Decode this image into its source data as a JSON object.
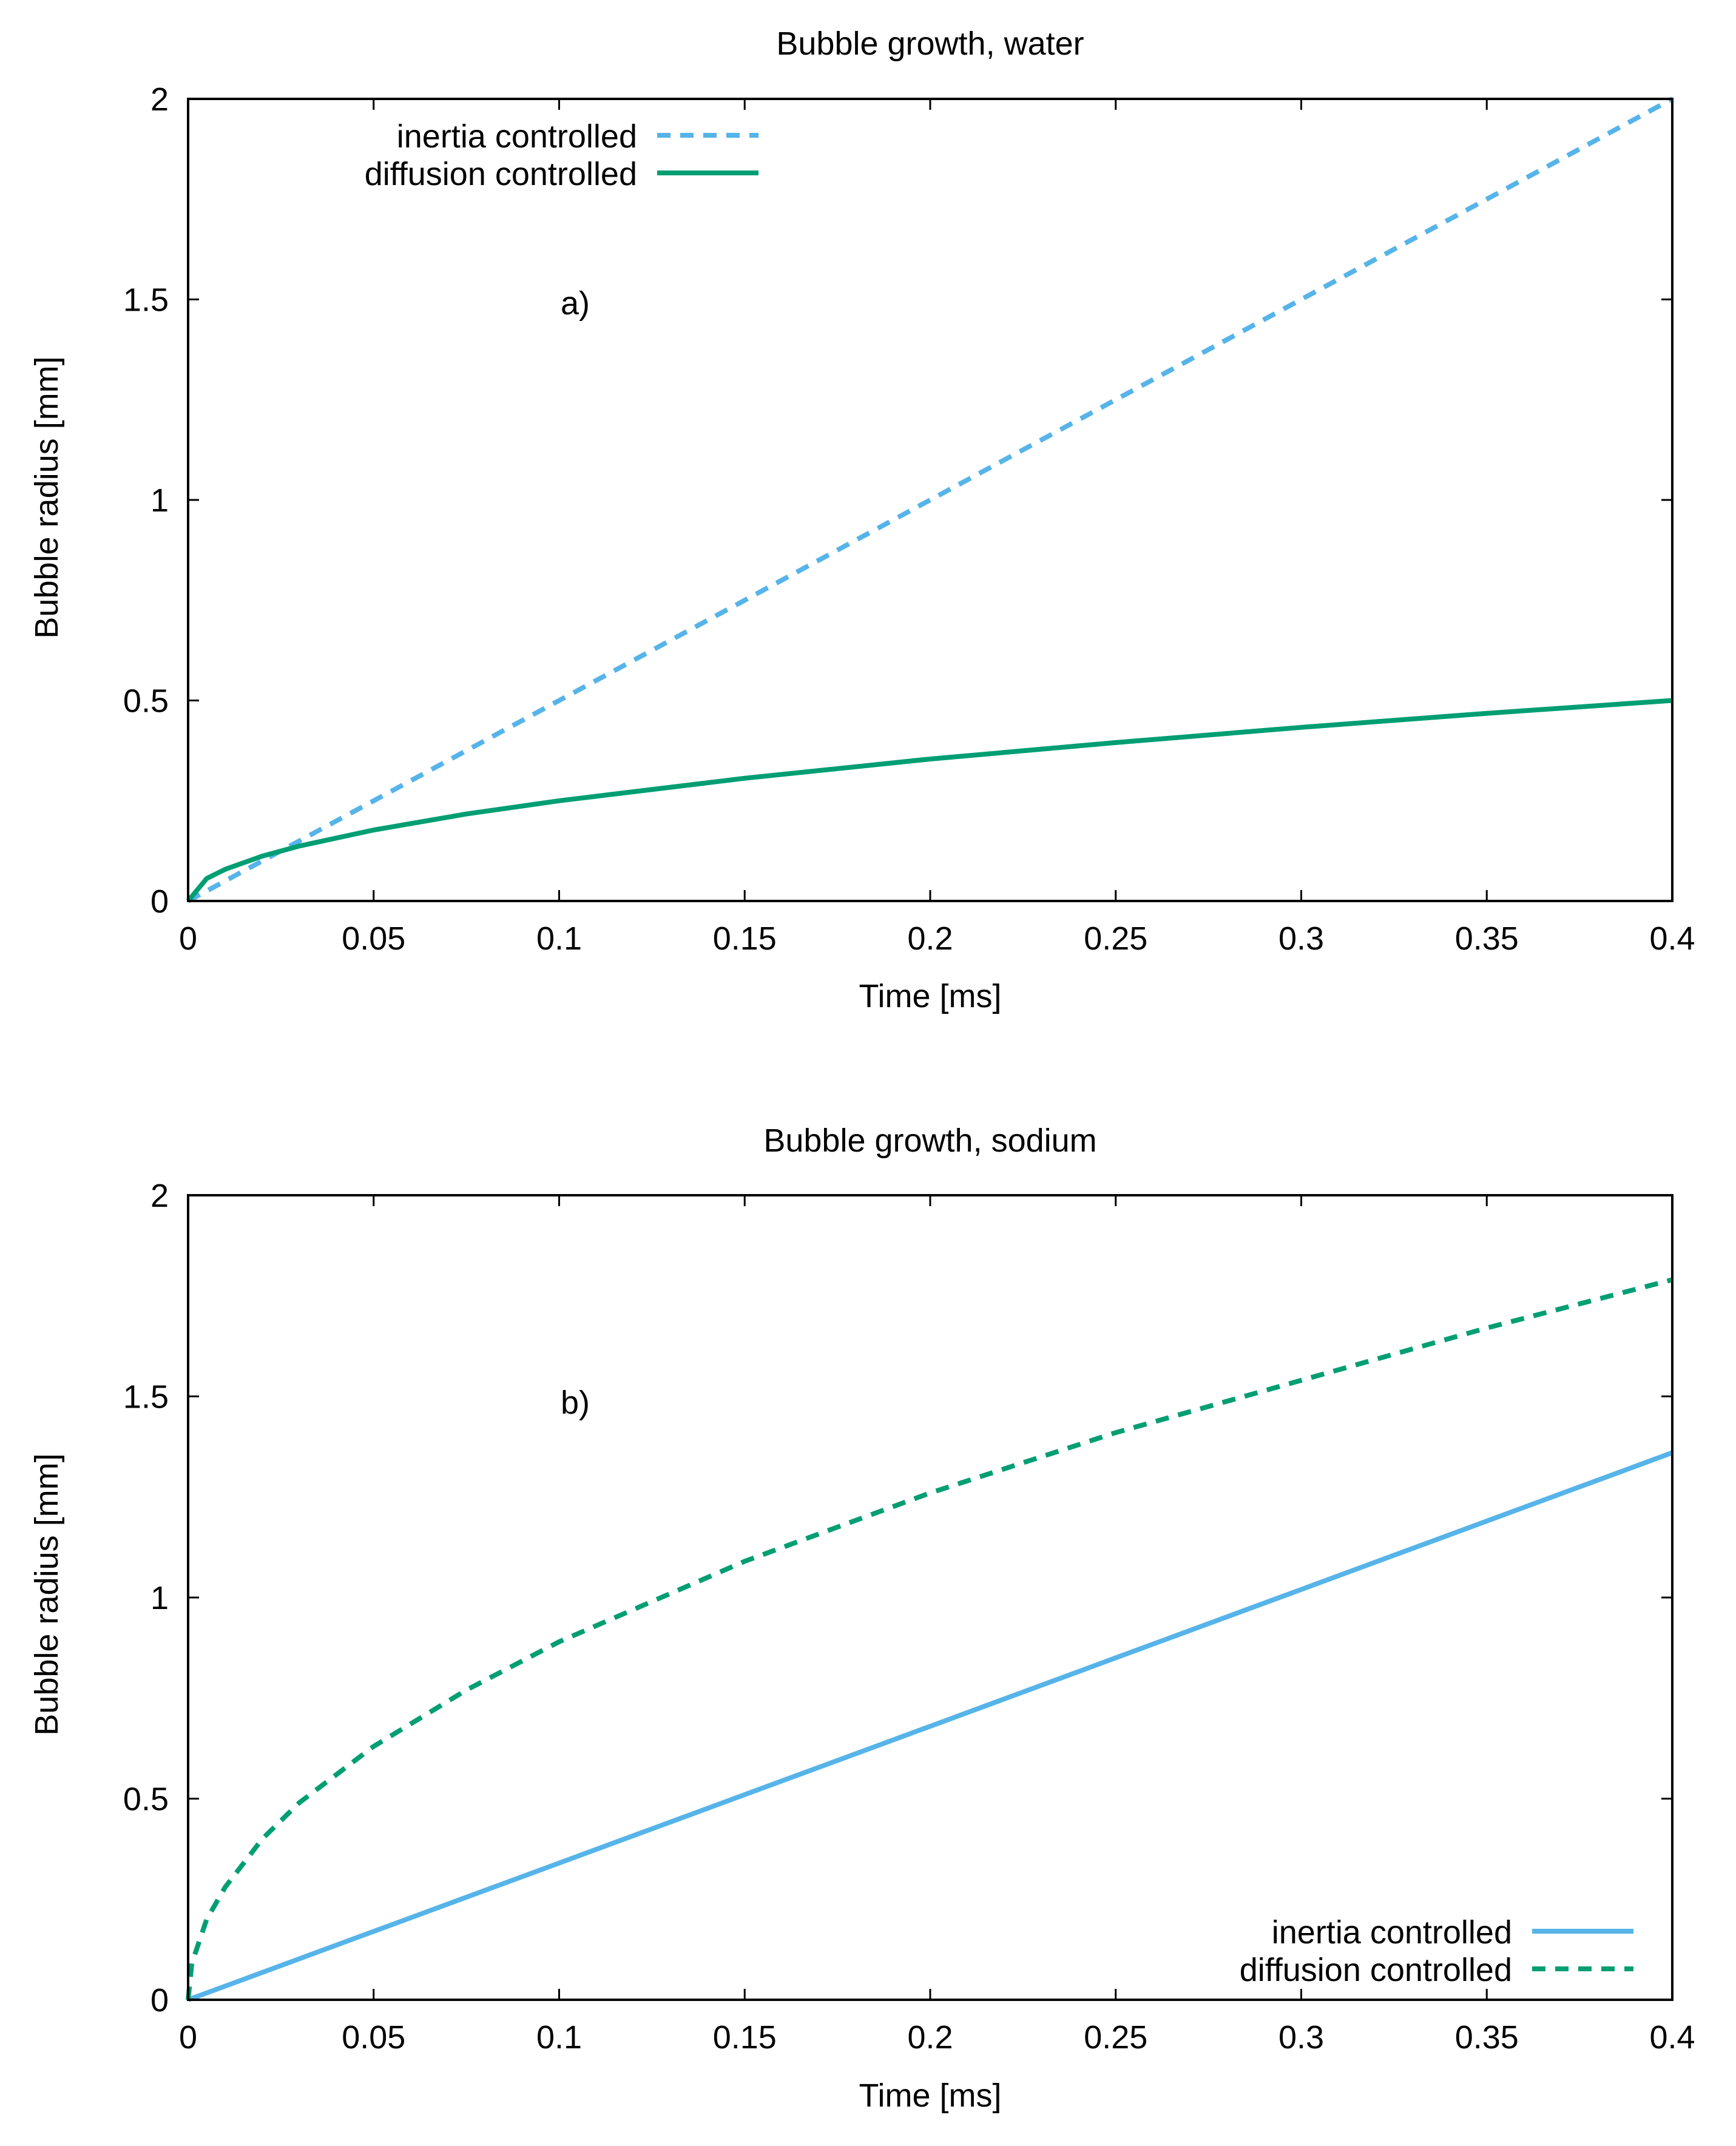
{
  "chart_data": [
    {
      "type": "line",
      "panel_label": "a)",
      "title": "Bubble growth, water",
      "xlabel": "Time [ms]",
      "ylabel": "Bubble radius [mm]",
      "xlim": [
        0,
        0.4
      ],
      "ylim": [
        0,
        2
      ],
      "xticks": [
        "0",
        "0.05",
        "0.1",
        "0.15",
        "0.2",
        "0.25",
        "0.3",
        "0.35",
        "0.4"
      ],
      "yticks": [
        "0",
        "0.5",
        "1",
        "1.5",
        "2"
      ],
      "grid": false,
      "legend_position": "top-left",
      "series": [
        {
          "name": "inertia controlled",
          "color": "#56B4E9",
          "style": "dashed",
          "x": [
            0,
            0.022,
            0.05,
            0.1,
            0.15,
            0.2,
            0.25,
            0.3,
            0.35,
            0.4
          ],
          "y": [
            0,
            0.11,
            0.25,
            0.5,
            0.75,
            1.0,
            1.25,
            1.5,
            1.75,
            2.0
          ]
        },
        {
          "name": "diffusion controlled",
          "color": "#009E73",
          "style": "solid",
          "x": [
            0,
            0.005,
            0.01,
            0.02,
            0.03,
            0.05,
            0.075,
            0.1,
            0.15,
            0.2,
            0.25,
            0.3,
            0.35,
            0.4
          ],
          "y": [
            0,
            0.056,
            0.079,
            0.112,
            0.137,
            0.177,
            0.217,
            0.25,
            0.306,
            0.354,
            0.395,
            0.433,
            0.468,
            0.5
          ]
        }
      ]
    },
    {
      "type": "line",
      "panel_label": "b)",
      "title": "Bubble growth, sodium",
      "xlabel": "Time [ms]",
      "ylabel": "Bubble radius [mm]",
      "xlim": [
        0,
        0.4
      ],
      "ylim": [
        0,
        2
      ],
      "xticks": [
        "0",
        "0.05",
        "0.1",
        "0.15",
        "0.2",
        "0.25",
        "0.3",
        "0.35",
        "0.4"
      ],
      "yticks": [
        "0",
        "0.5",
        "1",
        "1.5",
        "2"
      ],
      "grid": false,
      "legend_position": "bottom-right",
      "series": [
        {
          "name": "inertia controlled",
          "color": "#56B4E9",
          "style": "solid",
          "x": [
            0,
            0.05,
            0.1,
            0.15,
            0.2,
            0.25,
            0.3,
            0.35,
            0.4
          ],
          "y": [
            0,
            0.17,
            0.34,
            0.51,
            0.68,
            0.85,
            1.02,
            1.19,
            1.36
          ]
        },
        {
          "name": "diffusion controlled",
          "color": "#009E73",
          "style": "dashed",
          "x": [
            0,
            0.001,
            0.005,
            0.01,
            0.02,
            0.03,
            0.05,
            0.075,
            0.1,
            0.15,
            0.2,
            0.25,
            0.3,
            0.35,
            0.4
          ],
          "y": [
            0,
            0.09,
            0.2,
            0.28,
            0.4,
            0.49,
            0.63,
            0.77,
            0.89,
            1.09,
            1.26,
            1.41,
            1.54,
            1.67,
            1.79
          ]
        }
      ]
    }
  ]
}
